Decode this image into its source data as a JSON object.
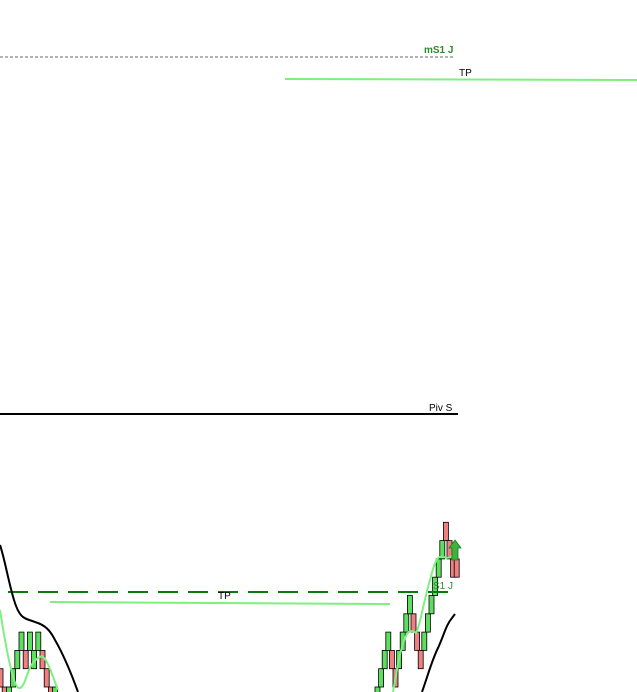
{
  "colors": {
    "up": "#5ede5e",
    "down": "#ee8080",
    "brick_border": "#000000",
    "s1_line": "#0a7a0a",
    "tp_line": "#7ef07e",
    "pivot_line": "#000000",
    "ms1_line": "#666666",
    "ms1_label": "#2a8a2a"
  },
  "levels": {
    "ms1": {
      "label": "mS1 J"
    },
    "tp_upper": {
      "label": "TP"
    },
    "pivot": {
      "label": "Piv S"
    },
    "s1": {
      "label": "S1 J"
    },
    "tp_lower": {
      "label": "TP"
    }
  },
  "chart_data": {
    "type": "renko",
    "bricks_left": [
      {
        "level": 1,
        "dir": "down"
      },
      {
        "level": 0,
        "dir": "down"
      },
      {
        "level": 0,
        "dir": "up"
      },
      {
        "level": 1,
        "dir": "up"
      },
      {
        "level": 2,
        "dir": "up"
      },
      {
        "level": 3,
        "dir": "up"
      },
      {
        "level": 2,
        "dir": "down"
      },
      {
        "level": 3,
        "dir": "up"
      },
      {
        "level": 2,
        "dir": "up"
      },
      {
        "level": 3,
        "dir": "up"
      },
      {
        "level": 2,
        "dir": "down"
      },
      {
        "level": 1,
        "dir": "down"
      },
      {
        "level": 0,
        "dir": "down"
      },
      {
        "level": 0,
        "dir": "up"
      }
    ],
    "bricks_right": [
      {
        "level": 0,
        "dir": "up"
      },
      {
        "level": 1,
        "dir": "up"
      },
      {
        "level": 2,
        "dir": "up"
      },
      {
        "level": 3,
        "dir": "up"
      },
      {
        "level": 2,
        "dir": "down"
      },
      {
        "level": 1,
        "dir": "down"
      },
      {
        "level": 2,
        "dir": "up"
      },
      {
        "level": 3,
        "dir": "up"
      },
      {
        "level": 4,
        "dir": "up"
      },
      {
        "level": 5,
        "dir": "up"
      },
      {
        "level": 4,
        "dir": "down"
      },
      {
        "level": 3,
        "dir": "down"
      },
      {
        "level": 2,
        "dir": "down"
      },
      {
        "level": 3,
        "dir": "up"
      },
      {
        "level": 4,
        "dir": "up"
      },
      {
        "level": 5,
        "dir": "up"
      },
      {
        "level": 6,
        "dir": "up"
      },
      {
        "level": 7,
        "dir": "up"
      },
      {
        "level": 8,
        "dir": "up"
      },
      {
        "level": 9,
        "dir": "down"
      },
      {
        "level": 8,
        "dir": "down"
      },
      {
        "level": 7,
        "dir": "down"
      },
      {
        "level": 7,
        "dir": "down"
      }
    ],
    "signal": "up-arrow"
  }
}
